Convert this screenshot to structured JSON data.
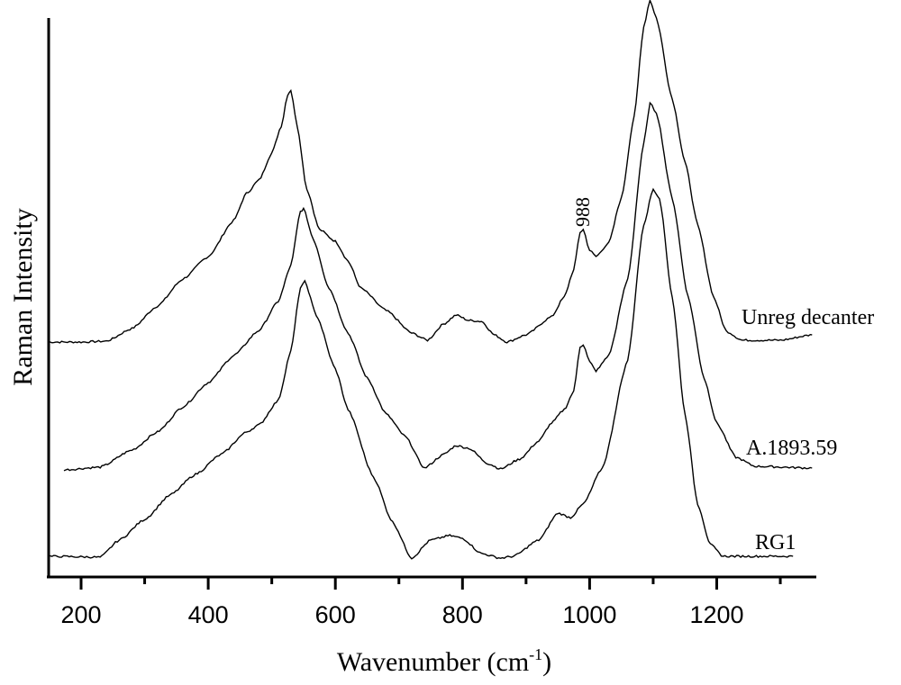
{
  "chart_data": {
    "type": "line",
    "title": "",
    "xlabel": "Wavenumber (cm-1)",
    "xlabel_main": "Wavenumber (cm",
    "xlabel_sup": "-1",
    "xlabel_close": ")",
    "ylabel": "Raman Intensity",
    "xlim": [
      148,
      1355
    ],
    "ylim": [
      0,
      640
    ],
    "x_ticks": [
      200,
      400,
      600,
      800,
      1000,
      1200
    ],
    "x_minor_ticks": [
      300,
      500,
      700,
      900,
      1100,
      1300
    ],
    "y_ticks": [],
    "grid": false,
    "legend": "inline labels at right end of each trace",
    "annotations": [
      {
        "text": "988",
        "x": 988,
        "series": "Unreg decanter",
        "rotation": -90
      }
    ],
    "series": [
      {
        "name": "Unreg decanter",
        "label_pos": {
          "x": 823,
          "y": 360
        },
        "x": [
          148,
          200,
          240,
          280,
          320,
          360,
          400,
          440,
          460,
          480,
          500,
          515,
          525,
          530,
          540,
          555,
          575,
          600,
          620,
          640,
          680,
          720,
          745,
          770,
          790,
          810,
          830,
          850,
          870,
          900,
          940,
          960,
          975,
          985,
          990,
          1000,
          1010,
          1030,
          1050,
          1070,
          1085,
          1095,
          1105,
          1130,
          1150,
          1170,
          1195,
          1215,
          1240,
          1300,
          1350
        ],
        "values": [
          260,
          260,
          261,
          275,
          300,
          330,
          355,
          395,
          425,
          440,
          470,
          500,
          535,
          540,
          500,
          430,
          385,
          372,
          350,
          320,
          295,
          270,
          262,
          280,
          290,
          284,
          283,
          268,
          260,
          268,
          288,
          310,
          340,
          382,
          385,
          362,
          355,
          370,
          420,
          510,
          610,
          640,
          620,
          530,
          460,
          390,
          310,
          272,
          262,
          262,
          268
        ]
      },
      {
        "name": "A.1893.59",
        "label_pos": {
          "x": 828,
          "y": 505
        },
        "x": [
          173,
          230,
          280,
          320,
          360,
          400,
          440,
          480,
          510,
          530,
          545,
          550,
          565,
          590,
          620,
          650,
          680,
          710,
          740,
          770,
          790,
          810,
          840,
          860,
          890,
          920,
          940,
          960,
          975,
          985,
          990,
          1000,
          1010,
          1030,
          1060,
          1085,
          1095,
          1105,
          1130,
          1155,
          1180,
          1200,
          1230,
          1260,
          1350
        ],
        "values": [
          118,
          121,
          140,
          160,
          188,
          215,
          245,
          273,
          305,
          345,
          405,
          408,
          375,
          320,
          270,
          220,
          180,
          155,
          120,
          135,
          145,
          142,
          125,
          119,
          130,
          150,
          170,
          185,
          205,
          255,
          257,
          238,
          228,
          245,
          330,
          480,
          525,
          515,
          420,
          310,
          220,
          170,
          132,
          122,
          120
        ]
      },
      {
        "name": "RG1",
        "label_pos": {
          "x": 838,
          "y": 610
        },
        "x": [
          148,
          230,
          260,
          300,
          340,
          380,
          420,
          460,
          480,
          510,
          530,
          545,
          552,
          570,
          600,
          620,
          660,
          690,
          720,
          750,
          780,
          800,
          830,
          860,
          880,
          920,
          950,
          970,
          990,
          1020,
          1060,
          1085,
          1100,
          1110,
          1130,
          1150,
          1170,
          1190,
          1210,
          1250,
          1320
        ],
        "values": [
          22,
          21,
          40,
          63,
          90,
          113,
          135,
          160,
          168,
          195,
          250,
          320,
          327,
          290,
          230,
          185,
          110,
          60,
          20,
          40,
          45,
          42,
          25,
          20,
          22,
          40,
          70,
          65,
          80,
          120,
          240,
          390,
          430,
          420,
          310,
          180,
          80,
          35,
          22,
          22,
          22
        ]
      }
    ]
  },
  "labels": {
    "y_axis": "Raman Intensity",
    "x_axis_main": "Wavenumber (cm",
    "x_axis_sup": "-1",
    "x_axis_close": ")",
    "peak_annotation": "988",
    "series": [
      "Unreg decanter",
      "A.1893.59",
      "RG1"
    ],
    "ticks": [
      "200",
      "400",
      "600",
      "800",
      "1000",
      "1200"
    ]
  },
  "colors": {
    "line": "#000000",
    "background": "#ffffff"
  }
}
